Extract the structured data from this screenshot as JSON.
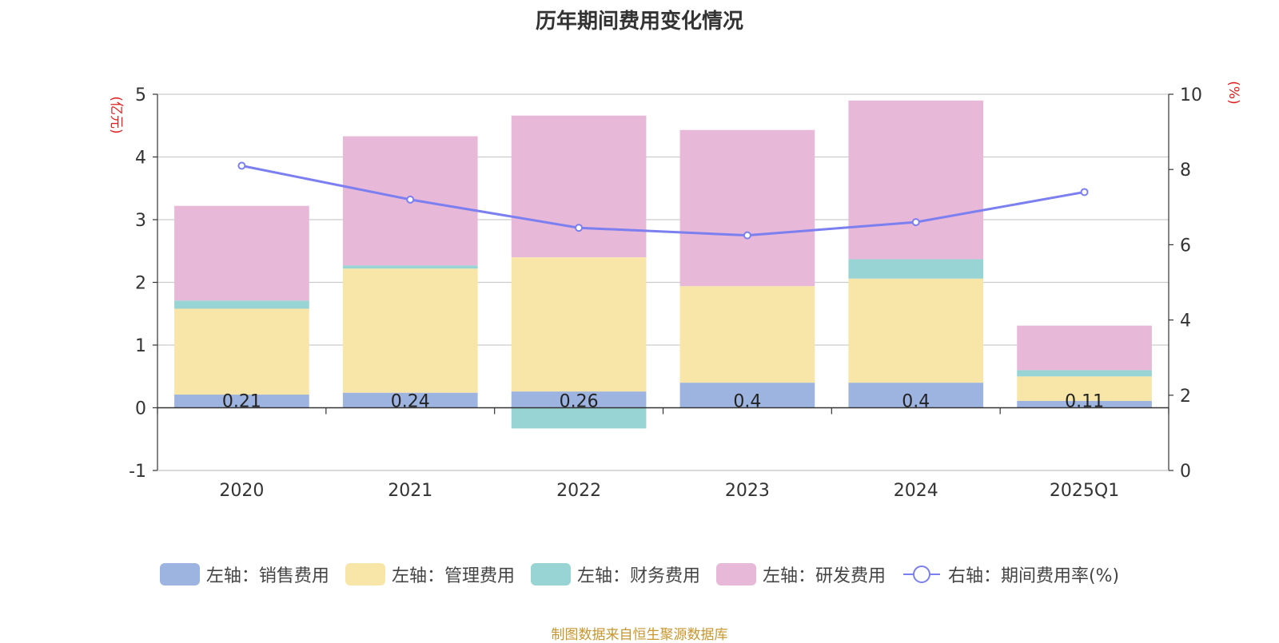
{
  "chart_data": {
    "type": "bar",
    "title": "历年期间费用变化情况",
    "categories": [
      "2020",
      "2021",
      "2022",
      "2023",
      "2024",
      "2025Q1"
    ],
    "left_axis": {
      "unit_label": "(亿元)",
      "ylim": [
        -1,
        5
      ],
      "ticks": [
        "-1",
        "0",
        "1",
        "2",
        "3",
        "4",
        "5"
      ]
    },
    "right_axis": {
      "unit_label": "(%)",
      "ylim": [
        0,
        10
      ],
      "ticks": [
        "0",
        "2",
        "4",
        "6",
        "8",
        "10"
      ]
    },
    "series": [
      {
        "name": "左轴：销售费用",
        "type": "bar",
        "axis": "left",
        "color": "#9db4e0",
        "values": [
          0.21,
          0.24,
          0.26,
          0.4,
          0.4,
          0.11
        ],
        "labels": [
          "0.21",
          "0.24",
          "0.26",
          "0.4",
          "0.4",
          "0.11"
        ]
      },
      {
        "name": "左轴：管理费用",
        "type": "bar",
        "axis": "left",
        "color": "#f7e6a8",
        "values": [
          1.37,
          1.98,
          2.14,
          1.54,
          1.66,
          0.39
        ]
      },
      {
        "name": "左轴：财务费用",
        "type": "bar",
        "axis": "left",
        "color": "#97d4d3",
        "values": [
          0.13,
          0.05,
          -0.33,
          0.0,
          0.31,
          0.1
        ]
      },
      {
        "name": "左轴：研发费用",
        "type": "bar",
        "axis": "left",
        "color": "#e7b8d8",
        "values": [
          1.51,
          2.06,
          2.26,
          2.49,
          2.53,
          0.71
        ]
      },
      {
        "name": "右轴：期间费用率(%)",
        "type": "line",
        "axis": "right",
        "color": "#7b7ff0",
        "values": [
          8.1,
          7.2,
          6.45,
          6.25,
          6.6,
          7.4
        ]
      }
    ],
    "grid": true,
    "legend_position": "bottom"
  },
  "source_note": "制图数据来自恒生聚源数据库"
}
